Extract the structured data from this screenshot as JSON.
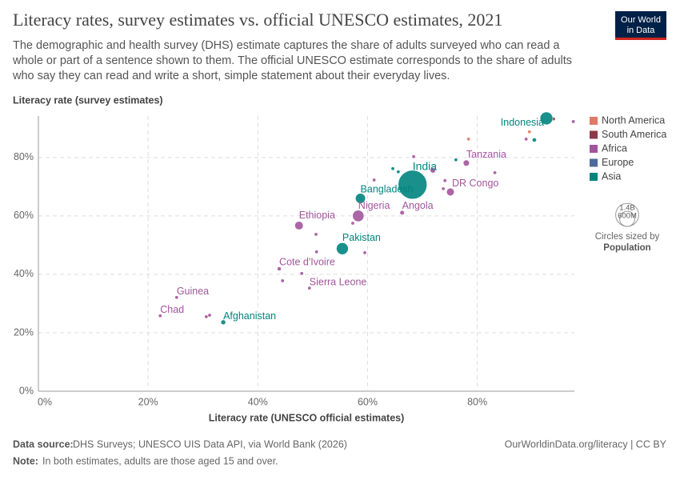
{
  "chart_data": {
    "type": "scatter",
    "title": "Literacy rates, survey estimates vs. official UNESCO estimates, 2021",
    "subtitle": [
      "The demographic and health survey (DHS) estimate captures the share of adults surveyed who can read a",
      "whole or part of a sentence shown to them. The official UNESCO estimate corresponds to the share of adults",
      "who say they can read and write a short, simple statement about their everyday lives."
    ],
    "y_label": "Literacy rate (survey estimates)",
    "x_label": "Literacy rate (UNESCO official estimates)",
    "xlim": [
      0,
      97.7
    ],
    "ylim": [
      0,
      94.2
    ],
    "xticks": [
      {
        "value": 0,
        "label": "0%"
      },
      {
        "value": 20,
        "label": "20%"
      },
      {
        "value": 40,
        "label": "40%"
      },
      {
        "value": 60,
        "label": "60%"
      },
      {
        "value": 80,
        "label": "80%"
      }
    ],
    "yticks": [
      {
        "value": 0,
        "label": "0%"
      },
      {
        "value": 20,
        "label": "20%"
      },
      {
        "value": 40,
        "label": "40%"
      },
      {
        "value": 60,
        "label": "60%"
      },
      {
        "value": 80,
        "label": "80%"
      }
    ],
    "grid": true,
    "series": [
      {
        "name": "North America",
        "color": "#e07a64",
        "x": [
          78.4,
          89.5
        ],
        "y": [
          86.3,
          88.8
        ],
        "size": [
          11,
          11
        ],
        "labels": [
          null,
          null
        ]
      },
      {
        "name": "South America",
        "color": "#8c3a45",
        "x": [
          93.9
        ],
        "y": [
          93.2
        ],
        "size": [
          12
        ],
        "labels": [
          null
        ]
      },
      {
        "name": "Africa",
        "color": "#a2559c",
        "x": [
          58.3,
          47.5,
          78.0,
          75.1,
          66.3,
          43.9,
          49.4,
          25.2,
          22.2,
          71.9,
          68.4,
          61.2,
          74.1,
          73.8,
          83.2,
          97.5,
          88.9,
          50.6,
          50.7,
          59.5,
          57.3,
          44.5,
          48.0,
          30.6,
          31.2
        ],
        "y": [
          60.0,
          56.7,
          78.1,
          68.2,
          61.1,
          41.9,
          35.3,
          32.1,
          25.8,
          75.6,
          80.3,
          72.3,
          72.1,
          69.3,
          74.8,
          92.3,
          86.3,
          53.7,
          47.7,
          47.4,
          57.5,
          37.8,
          40.3,
          25.5,
          26.0
        ],
        "size": [
          220,
          120,
          65,
          100,
          35,
          28,
          8,
          14,
          18,
          50,
          5,
          6,
          6,
          5,
          6,
          3,
          3,
          8,
          5,
          5,
          5,
          5,
          4,
          9,
          10
        ],
        "labels": [
          "Nigeria",
          "Ethiopia",
          "Tanzania",
          "DR Congo",
          "Angola",
          "Cote d'Ivoire",
          "Sierra Leone",
          "Guinea",
          "Chad",
          null,
          null,
          null,
          null,
          null,
          null,
          null,
          null,
          null,
          null,
          null,
          null,
          null,
          null,
          null,
          null
        ]
      },
      {
        "name": "Europe",
        "color": "#4c6a9c",
        "x": [],
        "y": [],
        "size": [],
        "labels": []
      },
      {
        "name": "Asia",
        "color": "#00847e",
        "x": [
          92.6,
          68.2,
          58.7,
          55.4,
          33.7,
          90.4,
          65.6,
          64.6,
          76.1
        ],
        "y": [
          93.4,
          70.7,
          66.0,
          48.8,
          23.6,
          86.0,
          75.1,
          76.2,
          79.2
        ],
        "size": [
          275,
          1400,
          170,
          240,
          40,
          30,
          10,
          5,
          5
        ],
        "labels": [
          "Indonesia",
          "India",
          "Bangladesh",
          "Pakistan",
          "Afghanistan",
          null,
          null,
          null,
          null
        ]
      }
    ],
    "size_legend": {
      "ticks": [
        {
          "value": 1400,
          "label": "1.4B"
        },
        {
          "value": 600,
          "label": "600M"
        }
      ],
      "title": "Circles sized by",
      "variable": "Population"
    },
    "source_prefix": "Data source:",
    "source": "DHS Surveys; UNESCO UIS Data API, via World Bank (2026)",
    "credit": "OurWorldinData.org/literacy | CC BY",
    "note_prefix": "Note:",
    "note": "In both estimates, adults are those aged 15 and over.",
    "logo": [
      "Our World",
      "in Data"
    ]
  }
}
